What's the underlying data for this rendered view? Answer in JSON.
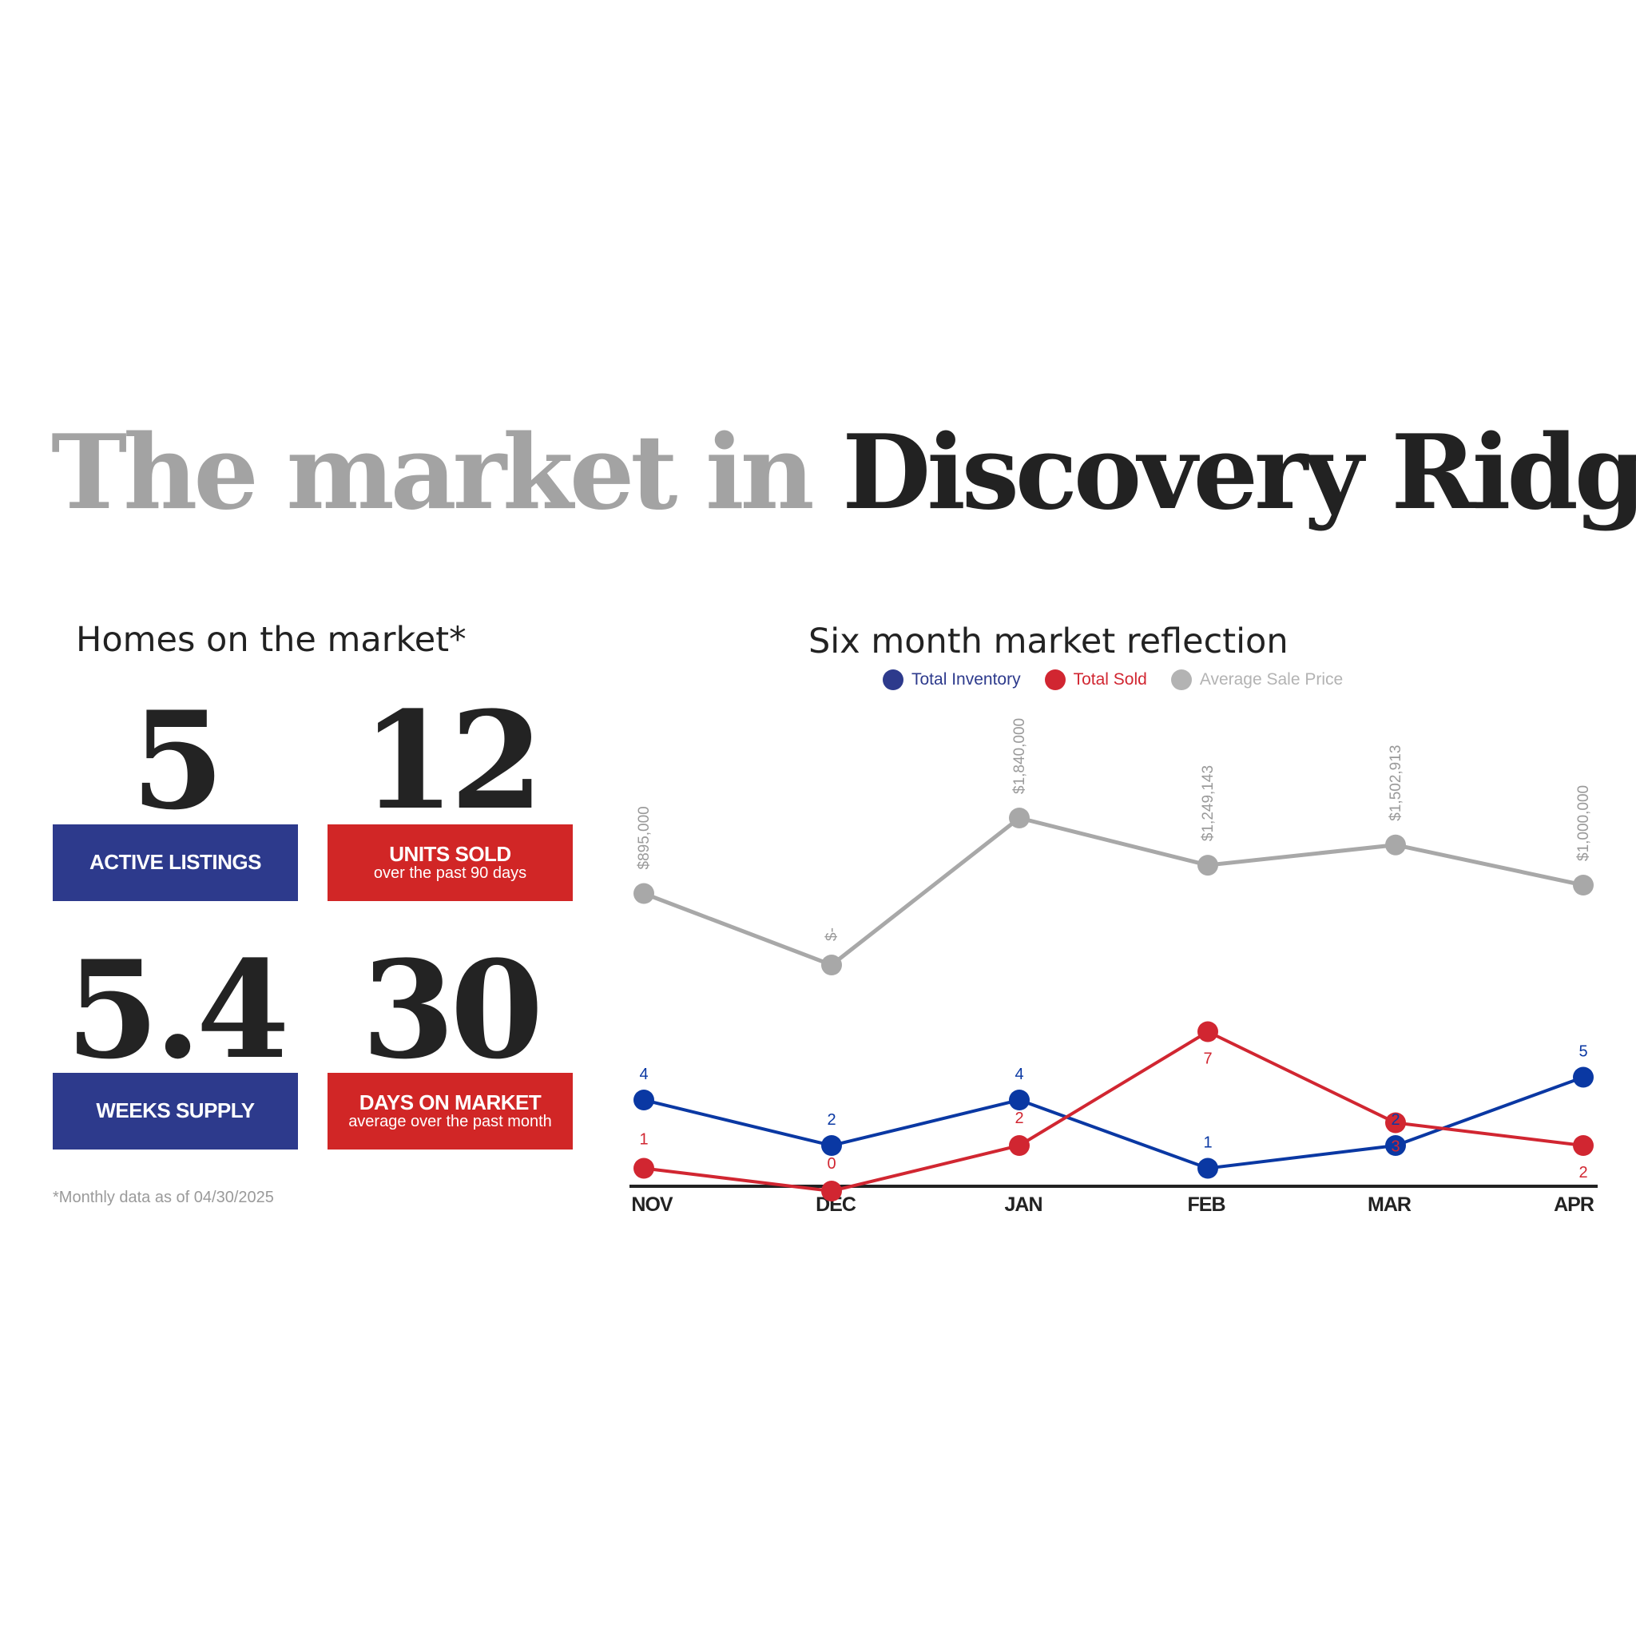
{
  "headline": {
    "part1": "The market in",
    "part2": "Discovery Ridge"
  },
  "homes": {
    "title": "Homes on the market*",
    "stats": [
      {
        "value": "5",
        "label": "ACTIVE LISTINGS",
        "sub": ""
      },
      {
        "value": "12",
        "label": "UNITS SOLD",
        "sub": "over the past 90 days"
      },
      {
        "value": "5.4",
        "label": "WEEKS SUPPLY",
        "sub": ""
      },
      {
        "value": "30",
        "label": "DAYS ON MARKET",
        "sub": "average over the past month"
      }
    ],
    "footnote": "*Monthly data as of 04/30/2025"
  },
  "colors": {
    "blue": "#0a38a3",
    "red": "#d12631",
    "gray": "#a8a8a8",
    "box_blue": "#2d3a8c",
    "box_red": "#d12626"
  },
  "chart_data": {
    "type": "line",
    "title": "Six month market reflection",
    "categories": [
      "NOV",
      "DEC",
      "JAN",
      "FEB",
      "MAR",
      "APR"
    ],
    "legend_placement": "top",
    "series": [
      {
        "name": "Total Inventory",
        "color": "#0a38a3",
        "values": [
          4,
          2,
          4,
          1,
          2,
          5
        ],
        "labels": [
          "4",
          "2",
          "4",
          "1",
          "2",
          "5"
        ]
      },
      {
        "name": "Total Sold",
        "color": "#d12631",
        "values": [
          1,
          0,
          2,
          7,
          3,
          2
        ],
        "labels": [
          "1",
          "0",
          "2",
          "7",
          "3",
          "2"
        ]
      },
      {
        "name": "Average Sale Price",
        "color": "#a8a8a8",
        "values": [
          895000,
          0,
          1840000,
          1249143,
          1502913,
          1000000
        ],
        "labels": [
          "$895,000",
          "$-",
          "$1,840,000",
          "$1,249,143",
          "$1,502,913",
          "$1,000,000"
        ]
      }
    ]
  }
}
